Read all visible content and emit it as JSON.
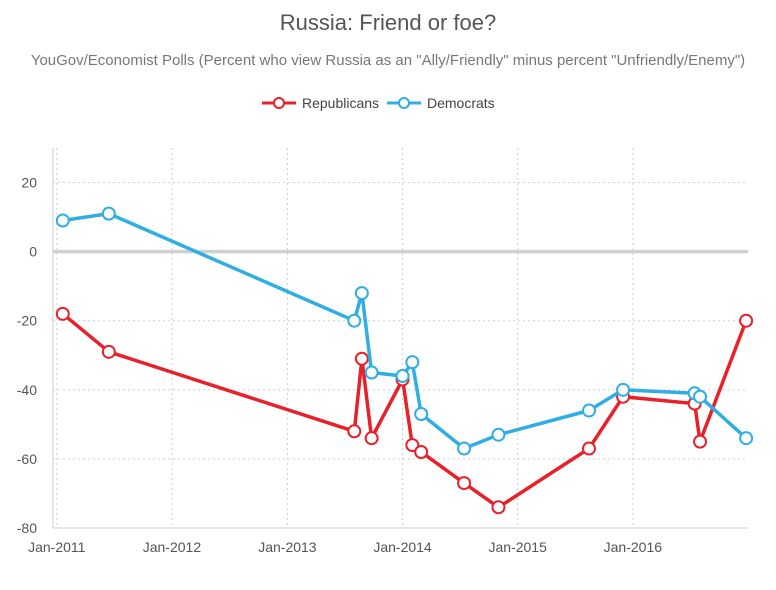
{
  "chart_data": {
    "type": "line",
    "title": "Russia: Friend or foe?",
    "subtitle": "YouGov/Economist Polls (Percent who view Russia as an \"Ally/Friendly\" minus percent \"Unfriendly/Enemy\")",
    "xlabel": "",
    "ylabel": "",
    "ylim": [
      -80,
      30
    ],
    "xlim": [
      "2010-12-20",
      "2016-12-31"
    ],
    "x_ticks": [
      "Jan-2011",
      "Jan-2012",
      "Jan-2013",
      "Jan-2014",
      "Jan-2015",
      "Jan-2016"
    ],
    "y_ticks": [
      20,
      0,
      -20,
      -40,
      -60,
      -80
    ],
    "grid": true,
    "legend_position": "top-center",
    "series": [
      {
        "name": "Republicans",
        "color": "#e8202a",
        "points": [
          {
            "x": "2011-01-20",
            "y": -18
          },
          {
            "x": "2011-06-15",
            "y": -29
          },
          {
            "x": "2013-08-01",
            "y": -52
          },
          {
            "x": "2013-08-25",
            "y": -31
          },
          {
            "x": "2013-09-25",
            "y": -54
          },
          {
            "x": "2014-01-01",
            "y": -37
          },
          {
            "x": "2014-02-01",
            "y": -56
          },
          {
            "x": "2014-03-01",
            "y": -58
          },
          {
            "x": "2014-07-15",
            "y": -67
          },
          {
            "x": "2014-11-01",
            "y": -74
          },
          {
            "x": "2015-08-15",
            "y": -57
          },
          {
            "x": "2015-12-01",
            "y": -42
          },
          {
            "x": "2016-07-15",
            "y": -44
          },
          {
            "x": "2016-08-01",
            "y": -55
          },
          {
            "x": "2016-12-25",
            "y": -20
          }
        ]
      },
      {
        "name": "Democrats",
        "color": "#2eaee3",
        "points": [
          {
            "x": "2011-01-20",
            "y": 9
          },
          {
            "x": "2011-06-15",
            "y": 11
          },
          {
            "x": "2013-08-01",
            "y": -20
          },
          {
            "x": "2013-08-25",
            "y": -12
          },
          {
            "x": "2013-09-25",
            "y": -35
          },
          {
            "x": "2014-01-01",
            "y": -36
          },
          {
            "x": "2014-02-01",
            "y": -32
          },
          {
            "x": "2014-03-01",
            "y": -47
          },
          {
            "x": "2014-07-15",
            "y": -57
          },
          {
            "x": "2014-11-01",
            "y": -53
          },
          {
            "x": "2015-08-15",
            "y": -46
          },
          {
            "x": "2015-12-01",
            "y": -40
          },
          {
            "x": "2016-07-15",
            "y": -41
          },
          {
            "x": "2016-08-01",
            "y": -42
          },
          {
            "x": "2016-12-25",
            "y": -54
          }
        ]
      }
    ]
  }
}
